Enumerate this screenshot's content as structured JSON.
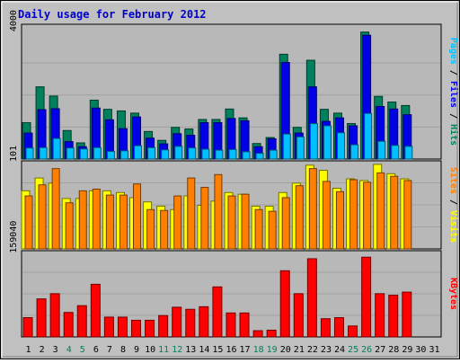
{
  "chart_data": [
    {
      "type": "bar",
      "title": "Daily usage for February 2012",
      "categories": [
        "1",
        "2",
        "3",
        "4",
        "5",
        "6",
        "7",
        "8",
        "9",
        "10",
        "11",
        "12",
        "13",
        "14",
        "15",
        "16",
        "17",
        "18",
        "19",
        "20",
        "21",
        "22",
        "23",
        "24",
        "25",
        "26",
        "27",
        "28",
        "29",
        "30",
        "31"
      ],
      "weekend_categories": [
        "4",
        "5",
        "11",
        "12",
        "18",
        "19",
        "25",
        "26"
      ],
      "ytick_label": "4000",
      "ylim": [
        0,
        4200
      ],
      "legend": [
        "Pages",
        "Files",
        "Hits"
      ],
      "series": [
        {
          "name": "Hits",
          "values": [
            1150,
            2280,
            1990,
            900,
            510,
            1860,
            1570,
            1520,
            1450,
            870,
            590,
            1000,
            950,
            1250,
            1250,
            1580,
            1300,
            490,
            680,
            3310,
            1000,
            3120,
            1570,
            1450,
            1120,
            4010,
            1980,
            1800,
            1690,
            0,
            0
          ]
        },
        {
          "name": "Files",
          "values": [
            820,
            1560,
            1590,
            550,
            390,
            1610,
            1240,
            960,
            1330,
            660,
            480,
            800,
            750,
            1150,
            1150,
            1280,
            1210,
            390,
            640,
            3050,
            820,
            2280,
            1190,
            1300,
            1050,
            3910,
            1660,
            1580,
            1400,
            0,
            0
          ]
        },
        {
          "name": "Pages",
          "values": [
            350,
            360,
            650,
            350,
            320,
            360,
            240,
            260,
            420,
            360,
            290,
            400,
            350,
            310,
            280,
            300,
            230,
            180,
            280,
            790,
            700,
            1120,
            1050,
            830,
            450,
            1440,
            560,
            430,
            400,
            0,
            0
          ]
        }
      ]
    },
    {
      "type": "bar",
      "categories": [
        "1",
        "2",
        "3",
        "4",
        "5",
        "6",
        "7",
        "8",
        "9",
        "10",
        "11",
        "12",
        "13",
        "14",
        "15",
        "16",
        "17",
        "18",
        "19",
        "20",
        "21",
        "22",
        "23",
        "24",
        "25",
        "26",
        "27",
        "28",
        "29",
        "30",
        "31"
      ],
      "ytick_label": "101",
      "ylim": [
        0,
        101
      ],
      "legend": [
        "Sites",
        "Visits"
      ],
      "series": [
        {
          "name": "Visits",
          "values": [
            68,
            83,
            77,
            59,
            59,
            68,
            68,
            66,
            60,
            55,
            50,
            46,
            62,
            51,
            56,
            66,
            64,
            50,
            50,
            66,
            77,
            98,
            92,
            71,
            82,
            80,
            99,
            88,
            82,
            0,
            0
          ]
        },
        {
          "name": "Sites",
          "values": [
            62,
            75,
            94,
            54,
            68,
            70,
            63,
            63,
            76,
            46,
            45,
            62,
            83,
            72,
            87,
            62,
            64,
            46,
            44,
            60,
            74,
            94,
            79,
            67,
            81,
            78,
            89,
            85,
            80,
            0,
            0
          ]
        }
      ]
    },
    {
      "type": "bar",
      "categories": [
        "1",
        "2",
        "3",
        "4",
        "5",
        "6",
        "7",
        "8",
        "9",
        "10",
        "11",
        "12",
        "13",
        "14",
        "15",
        "16",
        "17",
        "18",
        "19",
        "20",
        "21",
        "22",
        "23",
        "24",
        "25",
        "26",
        "27",
        "28",
        "29",
        "30",
        "31"
      ],
      "ytick_label": "159040",
      "ylim": [
        0,
        162000
      ],
      "legend": [
        "KBytes"
      ],
      "series": [
        {
          "name": "KBytes",
          "values": [
            37000,
            73000,
            83000,
            47000,
            60000,
            101000,
            38000,
            38000,
            32000,
            32000,
            41000,
            57000,
            53000,
            58000,
            96000,
            46000,
            46000,
            12000,
            13000,
            127000,
            83000,
            150000,
            35000,
            37000,
            21000,
            153000,
            83000,
            80000,
            86000,
            0,
            0
          ]
        }
      ]
    }
  ],
  "colors": {
    "bg": "#C0C0C0",
    "plot_bg": "#B8B8B8",
    "title": "#0000CC",
    "hits": "#00805C",
    "files": "#0000E6",
    "pages": "#00C0FF",
    "visits": "#FFFF00",
    "sites": "#FF8000",
    "kbytes": "#FF0000",
    "weekday_label": "#000000",
    "weekend_label": "#00805C"
  }
}
